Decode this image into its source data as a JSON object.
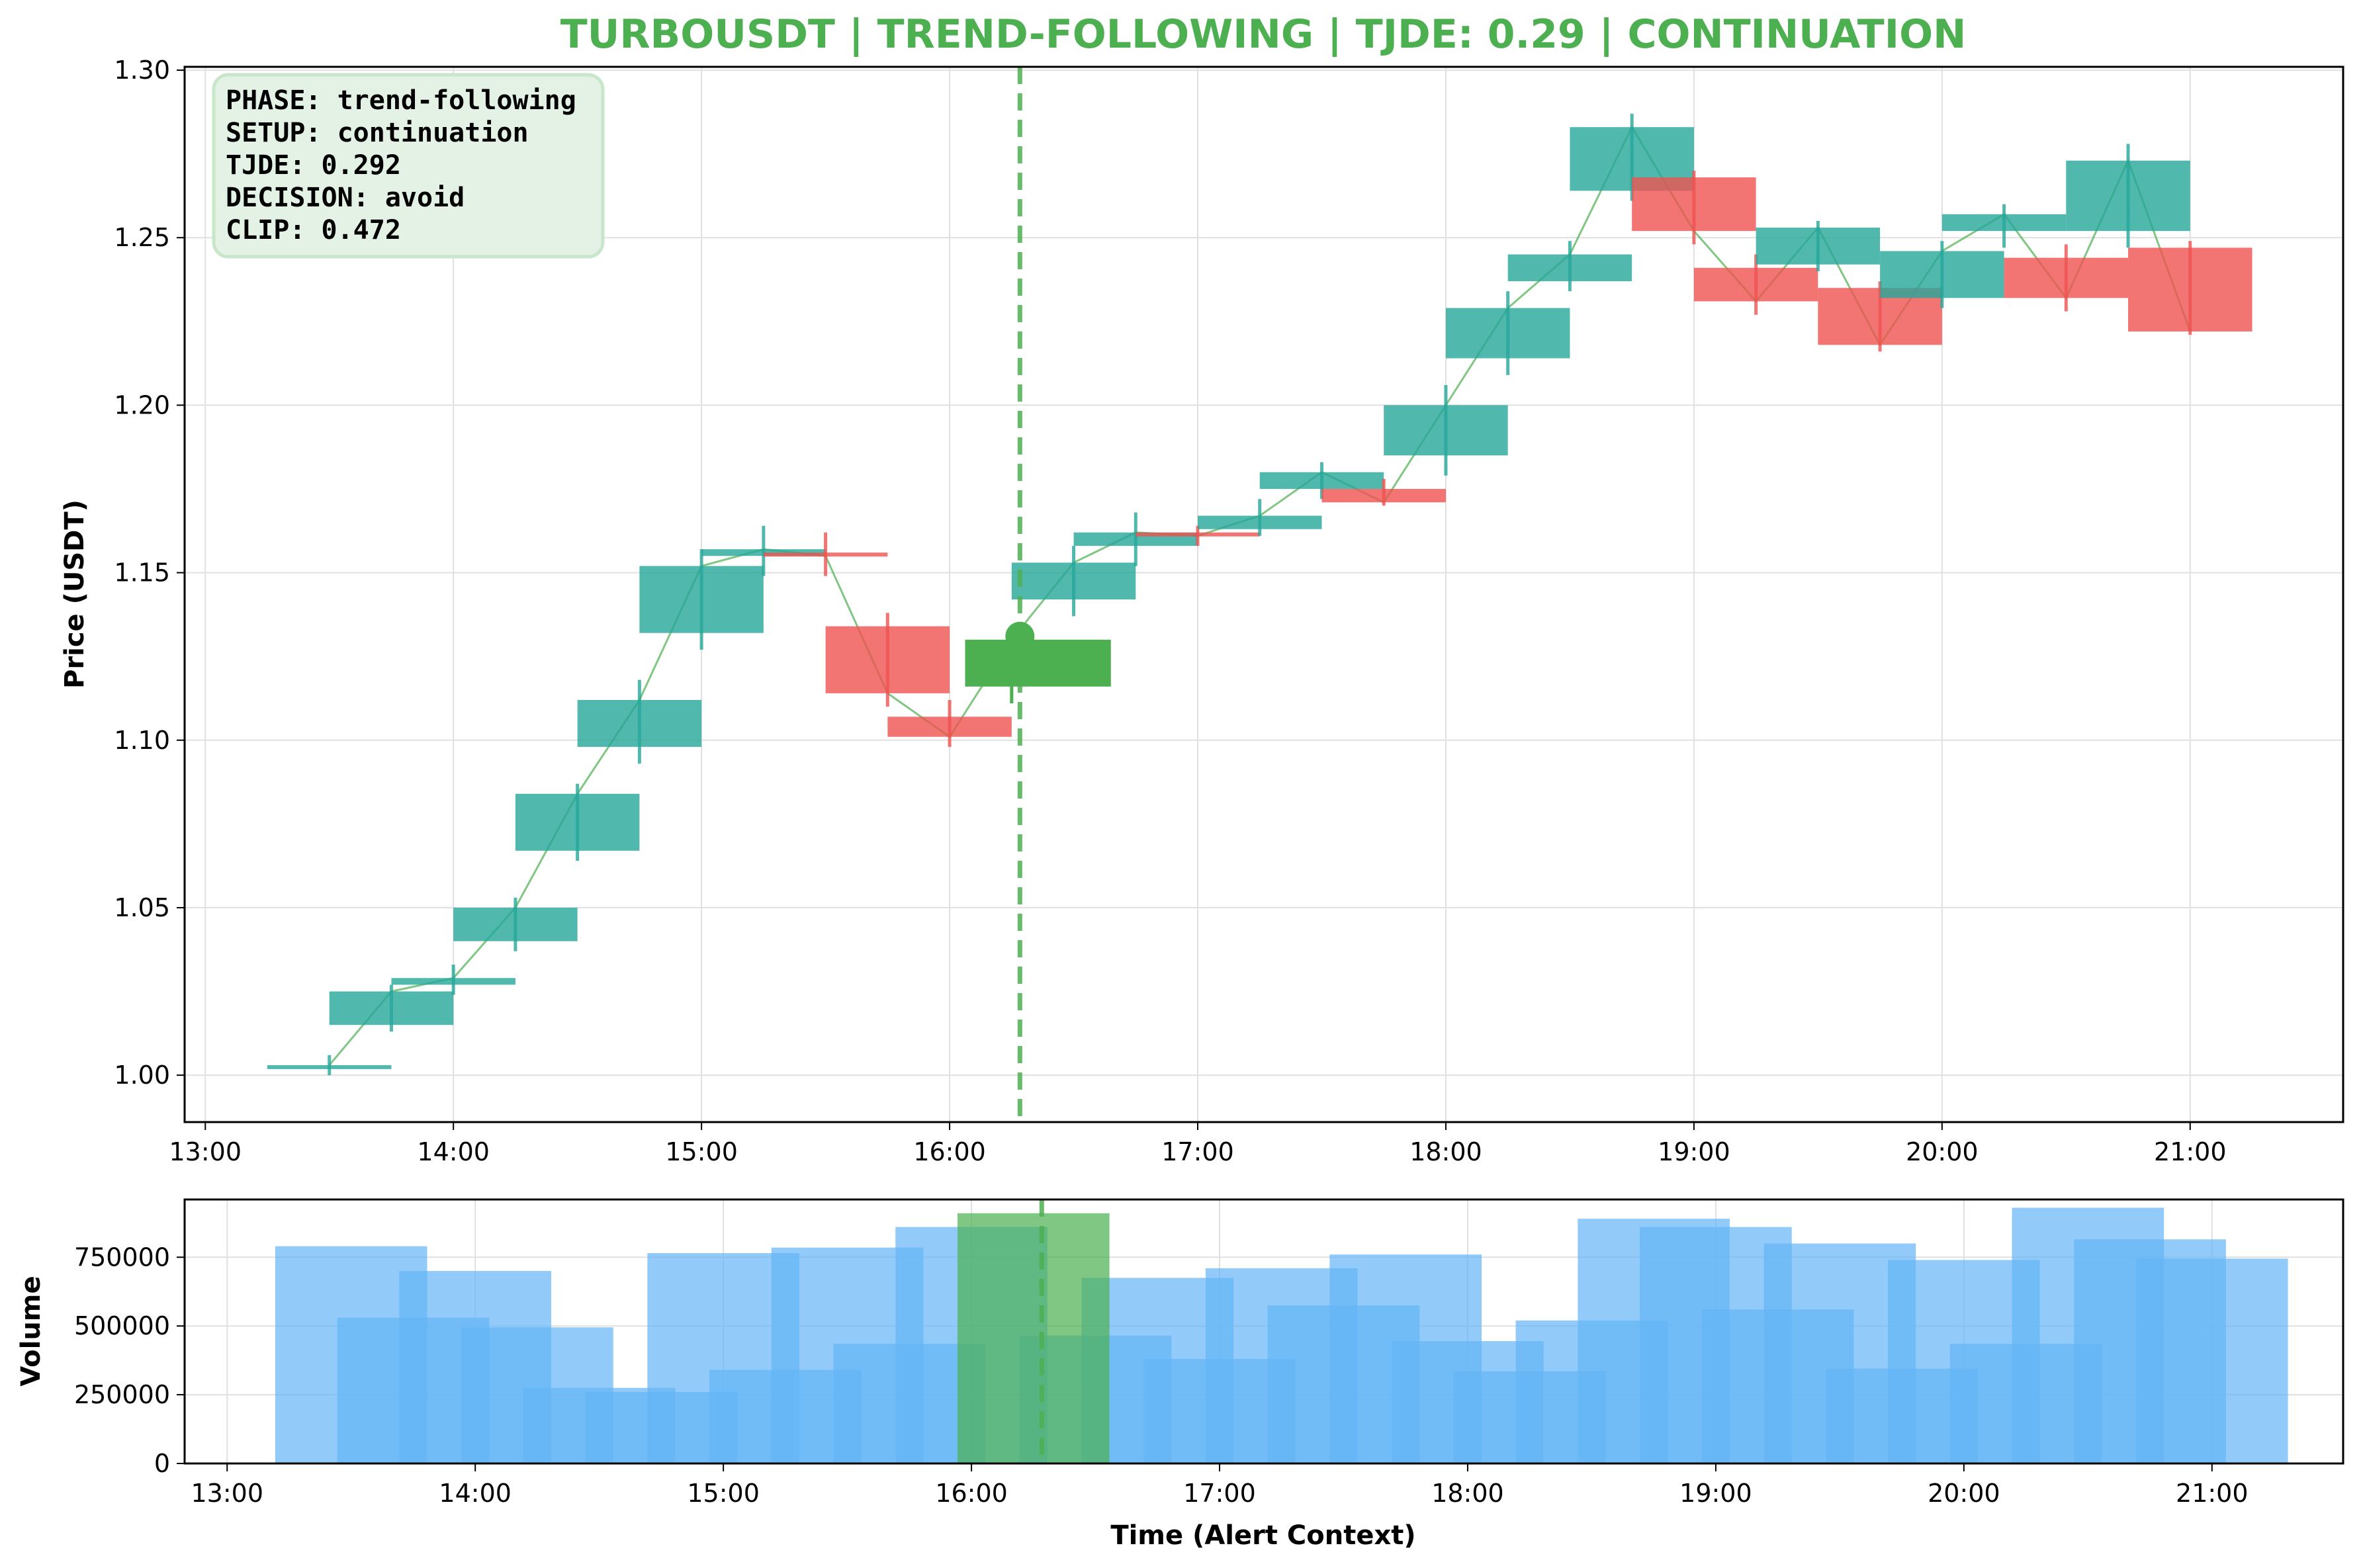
{
  "colors": {
    "up": "#26a69a",
    "down": "#ef5350",
    "alert": "#4caf50",
    "volume": "#64b5f6",
    "grid": "#e0e0e0",
    "info_box_fill": "#e3f2e4",
    "info_box_stroke": "#c8e6c9"
  },
  "info_box": {
    "phase": "PHASE: trend-following",
    "setup": "SETUP: continuation",
    "tjde": "TJDE: 0.292",
    "decision": "DECISION: avoid",
    "clip": "CLIP: 0.472"
  },
  "chart_data": [
    {
      "type": "candlestick",
      "title": "TURBOUSDT | TREND-FOLLOWING | TJDE: 0.29 | CONTINUATION",
      "xlabel": "",
      "ylabel": "Price (USDT)",
      "xlim": [
        "12:55",
        "21:37"
      ],
      "ylim": [
        0.986,
        1.301
      ],
      "x_ticks": [
        "13:00",
        "14:00",
        "15:00",
        "16:00",
        "17:00",
        "18:00",
        "19:00",
        "20:00",
        "21:00"
      ],
      "y_ticks": [
        "1.00",
        "1.05",
        "1.10",
        "1.15",
        "1.20",
        "1.25",
        "1.30"
      ],
      "grid": true,
      "alert_time": "16:17",
      "alert_price": 1.131,
      "candles": [
        {
          "t": "13:30",
          "o": 1.002,
          "h": 1.006,
          "l": 1.0,
          "c": 1.003
        },
        {
          "t": "13:45",
          "o": 1.015,
          "h": 1.027,
          "l": 1.013,
          "c": 1.025
        },
        {
          "t": "14:00",
          "o": 1.027,
          "h": 1.033,
          "l": 1.024,
          "c": 1.029
        },
        {
          "t": "14:15",
          "o": 1.04,
          "h": 1.053,
          "l": 1.037,
          "c": 1.05
        },
        {
          "t": "14:30",
          "o": 1.067,
          "h": 1.087,
          "l": 1.064,
          "c": 1.084
        },
        {
          "t": "14:45",
          "o": 1.098,
          "h": 1.118,
          "l": 1.093,
          "c": 1.112
        },
        {
          "t": "15:00",
          "o": 1.132,
          "h": 1.157,
          "l": 1.127,
          "c": 1.152
        },
        {
          "t": "15:15",
          "o": 1.155,
          "h": 1.164,
          "l": 1.149,
          "c": 1.157
        },
        {
          "t": "15:30",
          "o": 1.156,
          "h": 1.162,
          "l": 1.149,
          "c": 1.155
        },
        {
          "t": "15:45",
          "o": 1.134,
          "h": 1.138,
          "l": 1.11,
          "c": 1.114
        },
        {
          "t": "16:00",
          "o": 1.107,
          "h": 1.112,
          "l": 1.098,
          "c": 1.101
        },
        {
          "t": "16:15",
          "o": 1.116,
          "h": 1.13,
          "l": 1.111,
          "c": 1.13,
          "alert": true
        },
        {
          "t": "16:30",
          "o": 1.142,
          "h": 1.158,
          "l": 1.137,
          "c": 1.153
        },
        {
          "t": "16:45",
          "o": 1.158,
          "h": 1.168,
          "l": 1.152,
          "c": 1.162
        },
        {
          "t": "17:00",
          "o": 1.162,
          "h": 1.164,
          "l": 1.158,
          "c": 1.161
        },
        {
          "t": "17:15",
          "o": 1.163,
          "h": 1.172,
          "l": 1.161,
          "c": 1.167
        },
        {
          "t": "17:30",
          "o": 1.175,
          "h": 1.183,
          "l": 1.172,
          "c": 1.18
        },
        {
          "t": "17:45",
          "o": 1.175,
          "h": 1.178,
          "l": 1.17,
          "c": 1.171
        },
        {
          "t": "18:00",
          "o": 1.185,
          "h": 1.206,
          "l": 1.179,
          "c": 1.2
        },
        {
          "t": "18:15",
          "o": 1.214,
          "h": 1.234,
          "l": 1.209,
          "c": 1.229
        },
        {
          "t": "18:30",
          "o": 1.237,
          "h": 1.249,
          "l": 1.234,
          "c": 1.245
        },
        {
          "t": "18:45",
          "o": 1.264,
          "h": 1.287,
          "l": 1.261,
          "c": 1.283
        },
        {
          "t": "19:00",
          "o": 1.268,
          "h": 1.27,
          "l": 1.248,
          "c": 1.252
        },
        {
          "t": "19:15",
          "o": 1.241,
          "h": 1.245,
          "l": 1.227,
          "c": 1.231
        },
        {
          "t": "19:30",
          "o": 1.242,
          "h": 1.255,
          "l": 1.24,
          "c": 1.253
        },
        {
          "t": "19:45",
          "o": 1.235,
          "h": 1.237,
          "l": 1.216,
          "c": 1.218
        },
        {
          "t": "20:00",
          "o": 1.232,
          "h": 1.249,
          "l": 1.229,
          "c": 1.246
        },
        {
          "t": "20:15",
          "o": 1.252,
          "h": 1.26,
          "l": 1.247,
          "c": 1.257
        },
        {
          "t": "20:30",
          "o": 1.244,
          "h": 1.248,
          "l": 1.228,
          "c": 1.232
        },
        {
          "t": "20:45",
          "o": 1.252,
          "h": 1.278,
          "l": 1.247,
          "c": 1.273
        },
        {
          "t": "21:00",
          "o": 1.247,
          "h": 1.249,
          "l": 1.221,
          "c": 1.222
        }
      ]
    },
    {
      "type": "bar",
      "title": "",
      "xlabel": "Time (Alert Context)",
      "ylabel": "Volume",
      "xlim": [
        "12:55",
        "21:37"
      ],
      "ylim": [
        0,
        960000
      ],
      "x_ticks": [
        "13:00",
        "14:00",
        "15:00",
        "16:00",
        "17:00",
        "18:00",
        "19:00",
        "20:00",
        "21:00"
      ],
      "y_ticks": [
        "0",
        "250000",
        "500000",
        "750000"
      ],
      "grid": true,
      "alert_time": "16:17",
      "bars": [
        {
          "t": "13:30",
          "v": 790000
        },
        {
          "t": "13:45",
          "v": 530000
        },
        {
          "t": "14:00",
          "v": 700000
        },
        {
          "t": "14:15",
          "v": 495000
        },
        {
          "t": "14:30",
          "v": 275000
        },
        {
          "t": "14:45",
          "v": 260000
        },
        {
          "t": "15:00",
          "v": 765000
        },
        {
          "t": "15:15",
          "v": 340000
        },
        {
          "t": "15:30",
          "v": 785000
        },
        {
          "t": "15:45",
          "v": 435000
        },
        {
          "t": "16:00",
          "v": 860000
        },
        {
          "t": "16:15",
          "v": 910000,
          "alert": true
        },
        {
          "t": "16:30",
          "v": 465000
        },
        {
          "t": "16:45",
          "v": 675000
        },
        {
          "t": "17:00",
          "v": 380000
        },
        {
          "t": "17:15",
          "v": 710000
        },
        {
          "t": "17:30",
          "v": 575000
        },
        {
          "t": "17:45",
          "v": 760000
        },
        {
          "t": "18:00",
          "v": 445000
        },
        {
          "t": "18:15",
          "v": 335000
        },
        {
          "t": "18:30",
          "v": 520000
        },
        {
          "t": "18:45",
          "v": 890000
        },
        {
          "t": "19:00",
          "v": 860000
        },
        {
          "t": "19:15",
          "v": 560000
        },
        {
          "t": "19:30",
          "v": 800000
        },
        {
          "t": "19:45",
          "v": 345000
        },
        {
          "t": "20:00",
          "v": 740000
        },
        {
          "t": "20:15",
          "v": 435000
        },
        {
          "t": "20:30",
          "v": 930000
        },
        {
          "t": "20:45",
          "v": 815000
        },
        {
          "t": "21:00",
          "v": 745000
        }
      ]
    }
  ]
}
